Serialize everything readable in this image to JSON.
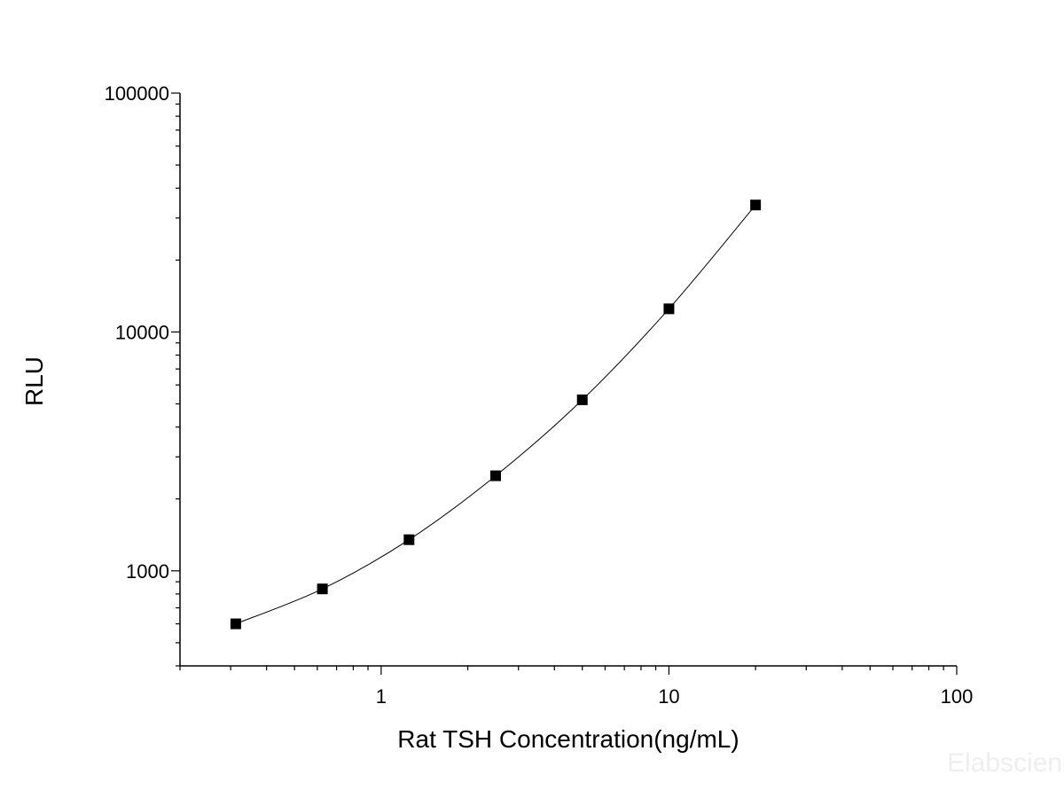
{
  "chart_data": {
    "type": "scatter",
    "title": "",
    "xlabel": "Rat TSH Concentration(ng/mL)",
    "ylabel": "RLU",
    "xscale": "log",
    "yscale": "log",
    "xlim": [
      0.2,
      100
    ],
    "ylim": [
      400,
      100000
    ],
    "xticks": [
      1,
      10,
      100
    ],
    "xtick_labels": [
      "1",
      "10",
      "100"
    ],
    "yticks": [
      1000,
      10000,
      100000
    ],
    "ytick_labels": [
      "1000",
      "10000",
      "100000"
    ],
    "grid": false,
    "legend": "none",
    "marker": "square",
    "fit_line": true,
    "color": "#000000",
    "series": [
      {
        "x": [
          0.3125,
          0.625,
          1.25,
          2.5,
          5,
          10,
          20
        ],
        "y": [
          600,
          840,
          1350,
          2500,
          5200,
          12500,
          34000
        ]
      }
    ]
  },
  "watermark": "Elabscience"
}
